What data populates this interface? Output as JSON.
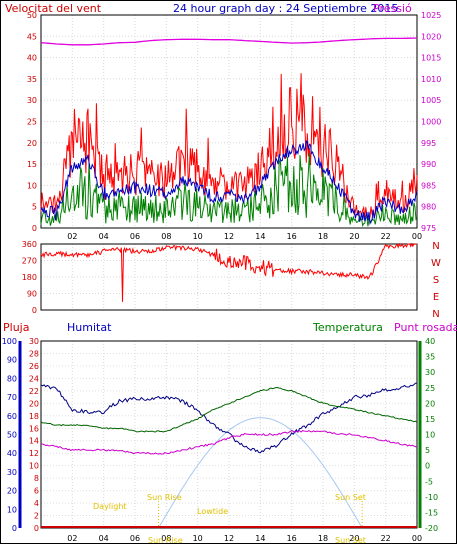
{
  "title": "24 hour graph day : 24 Septiembre 2015",
  "colors": {
    "wind": "#ff0000",
    "pressure": "#e000e0",
    "gust_avg": "#0000c0",
    "wind_avg": "#008000",
    "humidity": "#000080",
    "temperature": "#006400",
    "dewpoint": "#cc00cc",
    "rain": "#cc0000",
    "solar": "#a8c8f0",
    "sun_labels": "#e0c000",
    "text_red": "#cc0000",
    "text_blue": "#0000c0",
    "text_green": "#008000",
    "text_magenta": "#cc00cc"
  },
  "x_ticks": [
    "02",
    "04",
    "06",
    "08",
    "10",
    "12",
    "14",
    "16",
    "18",
    "20",
    "22",
    "00"
  ],
  "panel1": {
    "left_title": "Velocitat del vent",
    "right_title": "Pressió",
    "left_ticks": [
      "50",
      "45",
      "40",
      "35",
      "30",
      "25",
      "20",
      "15",
      "10",
      "5",
      "0"
    ],
    "right_ticks": [
      "1025",
      "1020",
      "1015",
      "1010",
      "1005",
      "1000",
      "995",
      "990",
      "985",
      "980",
      "975"
    ]
  },
  "panel2": {
    "left_ticks": [
      "360",
      "270",
      "180",
      "90",
      "0"
    ],
    "dir_labels": [
      "N",
      "W",
      "S",
      "E",
      "N"
    ]
  },
  "panel3": {
    "rain_title": "Pluja",
    "hum_title": "Humitat",
    "temp_title": "Temperatura",
    "dew_title": "Punt rosada",
    "rain_ticks": [
      "30",
      "28",
      "26",
      "24",
      "22",
      "20",
      "18",
      "16",
      "14",
      "12",
      "10",
      "8",
      "6",
      "4",
      "2",
      "0"
    ],
    "hum_ticks": [
      "100",
      "90",
      "80",
      "70",
      "60",
      "50",
      "40",
      "30",
      "20",
      "10",
      "0"
    ],
    "temp_ticks": [
      "40",
      "35",
      "30",
      "25",
      "20",
      "15",
      "10",
      "5",
      "0",
      "-5",
      "-10",
      "-15",
      "-20"
    ],
    "sun_labels": {
      "daylight": "Daylight",
      "sunrise": "Sun Rise",
      "sunrise_time": "Sun Rise",
      "lowtide": "Lowtide",
      "sunset": "Sun Set",
      "sunset_time": "Sun Set"
    }
  },
  "chart_data": [
    {
      "type": "line",
      "title": "24 hour graph day : 24 Septiembre 2015",
      "x_hours": [
        0,
        1,
        2,
        3,
        4,
        5,
        6,
        7,
        8,
        9,
        10,
        11,
        12,
        13,
        14,
        15,
        16,
        17,
        18,
        19,
        20,
        21,
        22,
        23,
        24
      ],
      "series": [
        {
          "name": "Velocitat del vent",
          "axis": "left",
          "values": [
            6,
            4,
            18,
            20,
            10,
            11,
            12,
            11,
            10,
            14,
            12,
            9,
            10,
            9,
            12,
            20,
            23,
            24,
            18,
            12,
            4,
            3,
            8,
            5,
            9
          ]
        },
        {
          "name": "Pressió",
          "axis": "right",
          "values": [
            1018.5,
            1018.2,
            1018,
            1018,
            1018.2,
            1018.5,
            1018.6,
            1019,
            1019.2,
            1019.3,
            1019.3,
            1019.2,
            1019.2,
            1019,
            1018.8,
            1018.6,
            1018.4,
            1018.5,
            1018.7,
            1019,
            1019.2,
            1019.4,
            1019.5,
            1019.5,
            1019.6
          ]
        }
      ],
      "ylim_left": [
        0,
        50
      ],
      "ylim_right": [
        975,
        1025
      ]
    },
    {
      "type": "line",
      "title": "",
      "x_hours": [
        0,
        1,
        2,
        3,
        4,
        5,
        6,
        7,
        8,
        9,
        10,
        11,
        12,
        13,
        14,
        15,
        16,
        17,
        18,
        19,
        20,
        21,
        22,
        23,
        24
      ],
      "series": [
        {
          "name": "Direcció",
          "values": [
            300,
            310,
            300,
            300,
            320,
            330,
            320,
            320,
            340,
            340,
            330,
            300,
            270,
            250,
            230,
            220,
            210,
            210,
            200,
            195,
            190,
            180,
            350,
            350,
            360
          ]
        }
      ],
      "ylim": [
        0,
        360
      ]
    },
    {
      "type": "line",
      "title": "",
      "x_hours": [
        0,
        1,
        2,
        3,
        4,
        5,
        6,
        7,
        8,
        9,
        10,
        11,
        12,
        13,
        14,
        15,
        16,
        17,
        18,
        19,
        20,
        21,
        22,
        23,
        24
      ],
      "series": [
        {
          "name": "Humitat",
          "axis": "hum",
          "values": [
            76,
            75,
            63,
            62,
            62,
            68,
            69,
            69,
            70,
            68,
            63,
            55,
            50,
            43,
            41,
            44,
            50,
            55,
            61,
            65,
            70,
            71,
            74,
            75,
            77
          ]
        },
        {
          "name": "Temperatura",
          "axis": "temp",
          "values": [
            14,
            13,
            13,
            13,
            12,
            12,
            11,
            11,
            11,
            13,
            15,
            18,
            20,
            22,
            24,
            25,
            24,
            22,
            20,
            19,
            18,
            17,
            16,
            15,
            14
          ]
        },
        {
          "name": "Punt rosada",
          "axis": "temp",
          "values": [
            7,
            6,
            5,
            5,
            5,
            5,
            4,
            4,
            4,
            5,
            6,
            7,
            9,
            10,
            10,
            10,
            11,
            11,
            11,
            10,
            10,
            9,
            8,
            7,
            6
          ]
        },
        {
          "name": "Pluja",
          "axis": "rain",
          "values": [
            0,
            0,
            0,
            0,
            0,
            0,
            0,
            0,
            0,
            0,
            0,
            0,
            0,
            0,
            0,
            0,
            0,
            0,
            0,
            0,
            0,
            0,
            0,
            0,
            0
          ]
        }
      ],
      "ylim_rain": [
        0,
        30
      ],
      "ylim_hum": [
        0,
        100
      ],
      "ylim_temp": [
        -20,
        40
      ]
    }
  ]
}
